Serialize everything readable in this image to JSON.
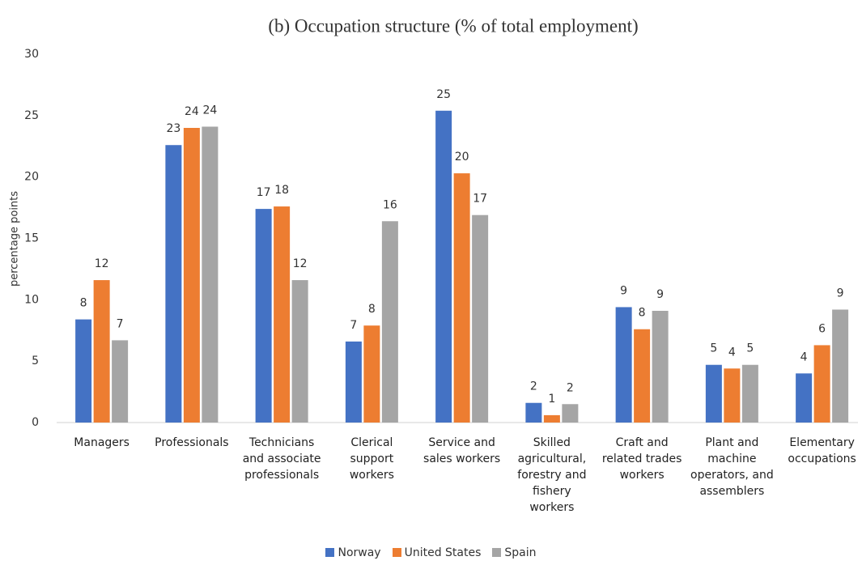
{
  "chart_data": {
    "type": "bar",
    "title": "(b)  Occupation structure (% of total employment)",
    "y_label": "percentage points",
    "categories": [
      "Managers",
      "Professionals",
      "Technicians and associate professionals",
      "Clerical support workers",
      "Service and sales workers",
      "Skilled agricultural, forestry and fishery workers",
      "Craft and related trades workers",
      "Plant and machine operators, and assemblers",
      "Elementary occupations"
    ],
    "series": [
      {
        "name": "Norway",
        "color": "#4472c4",
        "values": [
          8.4,
          22.6,
          17.4,
          6.6,
          25.4,
          1.6,
          9.4,
          4.7,
          4.0
        ],
        "value_labels": [
          "8",
          "23",
          "17",
          "7",
          "25",
          "2",
          "9",
          "5",
          "4"
        ]
      },
      {
        "name": "United States",
        "color": "#ed7d31",
        "values": [
          11.6,
          24.0,
          17.6,
          7.9,
          20.3,
          0.6,
          7.6,
          4.4,
          6.3
        ],
        "value_labels": [
          "12",
          "24",
          "18",
          "8",
          "20",
          "1",
          "8",
          "4",
          "6"
        ]
      },
      {
        "name": "Spain",
        "color": "#a5a5a5",
        "values": [
          6.7,
          24.1,
          11.6,
          16.4,
          16.9,
          1.5,
          9.1,
          4.7,
          9.2
        ],
        "value_labels": [
          "7",
          "24",
          "12",
          "16",
          "17",
          "2",
          "9",
          "5",
          "9"
        ]
      }
    ],
    "ylim": [
      0,
      30
    ],
    "yticks": [
      0,
      5,
      10,
      15,
      20,
      25,
      30
    ],
    "grid": false,
    "legend": "bottom"
  }
}
